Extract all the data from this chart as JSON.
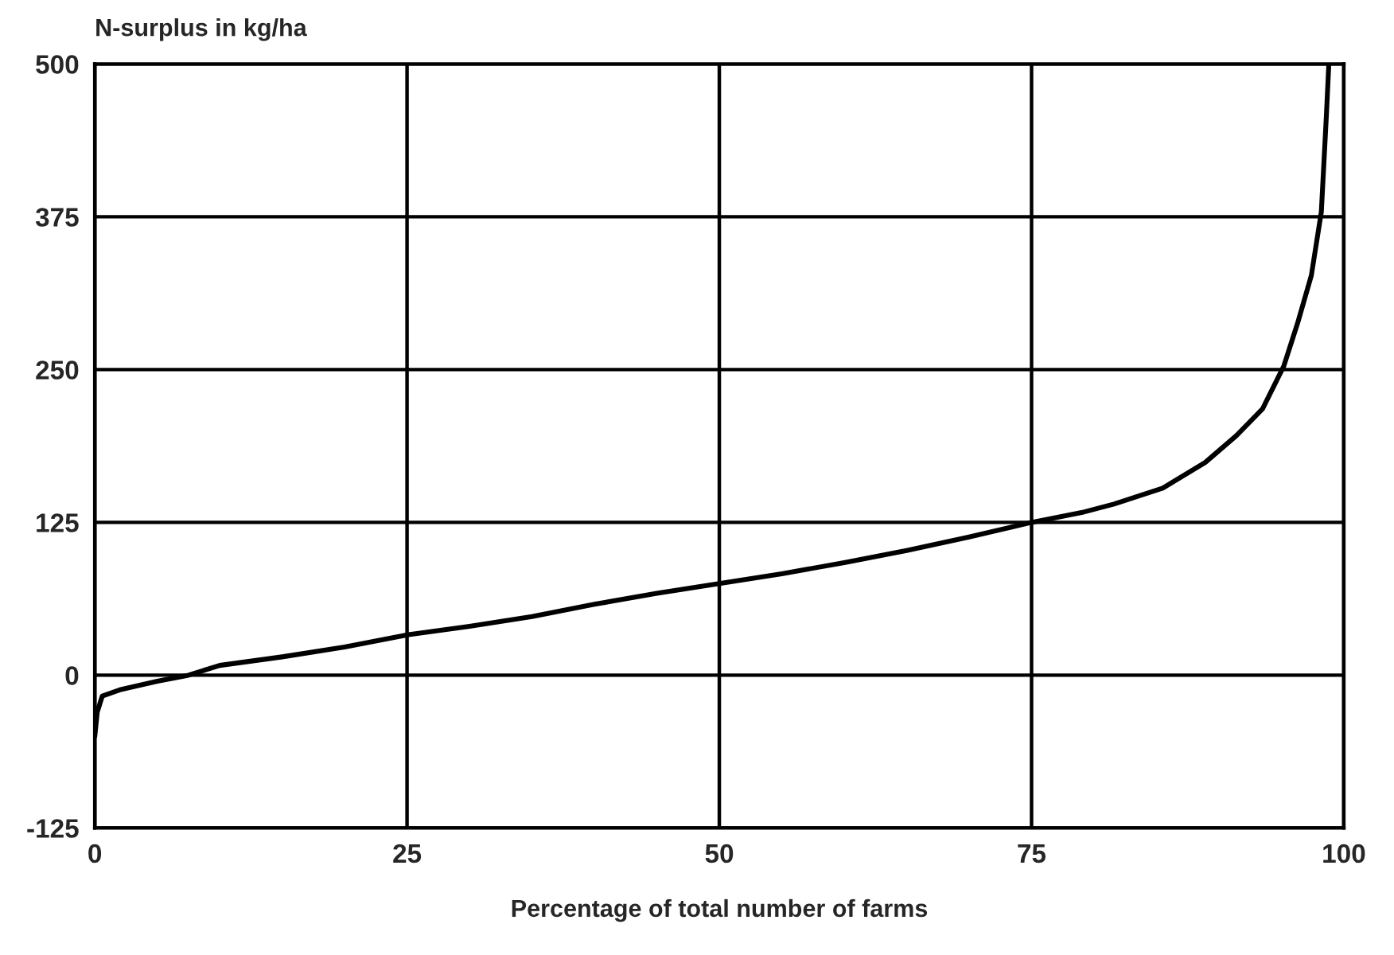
{
  "chart_data": {
    "type": "line",
    "ylabel": "N-surplus in kg/ha",
    "xlabel": "Percentage of total number of farms",
    "x": [
      0,
      0.2,
      0.6,
      2,
      5,
      7.5,
      10,
      15,
      20,
      25,
      30,
      35,
      40,
      45,
      50,
      55,
      60,
      65,
      70,
      75,
      79,
      81.6,
      85.5,
      88.9,
      91.4,
      93.5,
      95.2,
      96.3,
      97.4,
      98.2,
      98.6,
      98.8
    ],
    "series": [
      {
        "color": "#000000",
        "values": [
          -50,
          -30,
          -17,
          -12,
          -5,
          0,
          8,
          15,
          23,
          33,
          40,
          48,
          58,
          67,
          75,
          83,
          92,
          102,
          113,
          125,
          133,
          140,
          153,
          174,
          196,
          218,
          253,
          288,
          327,
          379,
          457,
          500
        ]
      }
    ],
    "xlim": [
      0,
      100
    ],
    "ylim": [
      -125,
      500
    ],
    "xticks": [
      0,
      25,
      50,
      75,
      100
    ],
    "yticks": [
      -125,
      0,
      125,
      250,
      375,
      500
    ],
    "grid": true,
    "marker": "none",
    "line_style": "solid"
  }
}
